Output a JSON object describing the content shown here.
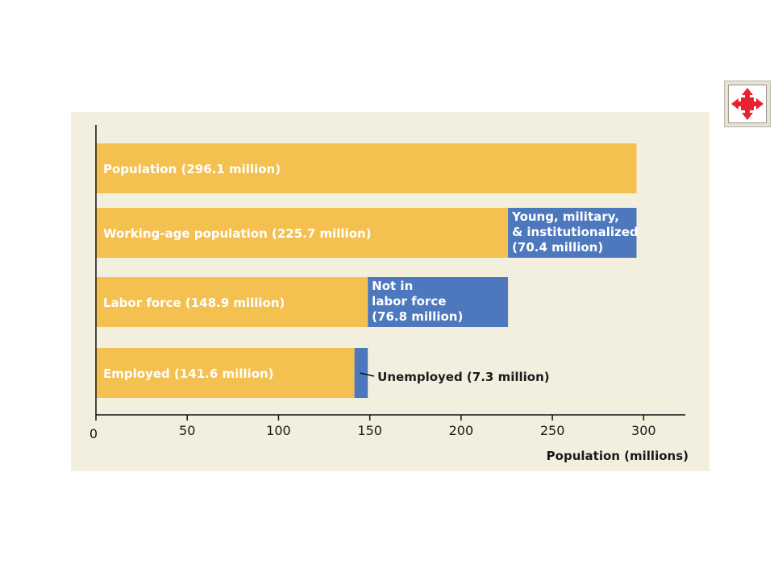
{
  "chart_data": {
    "type": "bar",
    "orientation": "horizontal",
    "stacked": true,
    "xlabel": "Population (millions)",
    "xlim": [
      0,
      320
    ],
    "xticks": [
      0,
      50,
      100,
      150,
      200,
      250,
      300
    ],
    "grid": false,
    "colors": {
      "primary": "#f4c050",
      "secondary": "#4e78bd"
    },
    "bars": [
      {
        "label": "Population (296.1 million)",
        "segments": [
          {
            "value": 296.1,
            "color": "#f4c050",
            "label": ""
          }
        ]
      },
      {
        "label": "Working-age population (225.7 million)",
        "segments": [
          {
            "value": 225.7,
            "color": "#f4c050",
            "label": ""
          },
          {
            "value": 70.4,
            "color": "#4e78bd",
            "label": "Young, military,\n& institutionalized\n(70.4 million)"
          }
        ]
      },
      {
        "label": "Labor force (148.9 million)",
        "segments": [
          {
            "value": 148.9,
            "color": "#f4c050",
            "label": ""
          },
          {
            "value": 76.8,
            "color": "#4e78bd",
            "label": "Not in\nlabor force\n(76.8 million)"
          }
        ]
      },
      {
        "label": "Employed (141.6 million)",
        "segments": [
          {
            "value": 141.6,
            "color": "#f4c050",
            "label": ""
          },
          {
            "value": 7.3,
            "color": "#4e78bd",
            "label": ""
          }
        ]
      }
    ],
    "annotations": [
      {
        "text": "Unemployed (7.3 million)",
        "bar": 3
      }
    ]
  },
  "icons": {
    "expand": "expand-arrows-icon",
    "expand_color": "#e8222e"
  }
}
